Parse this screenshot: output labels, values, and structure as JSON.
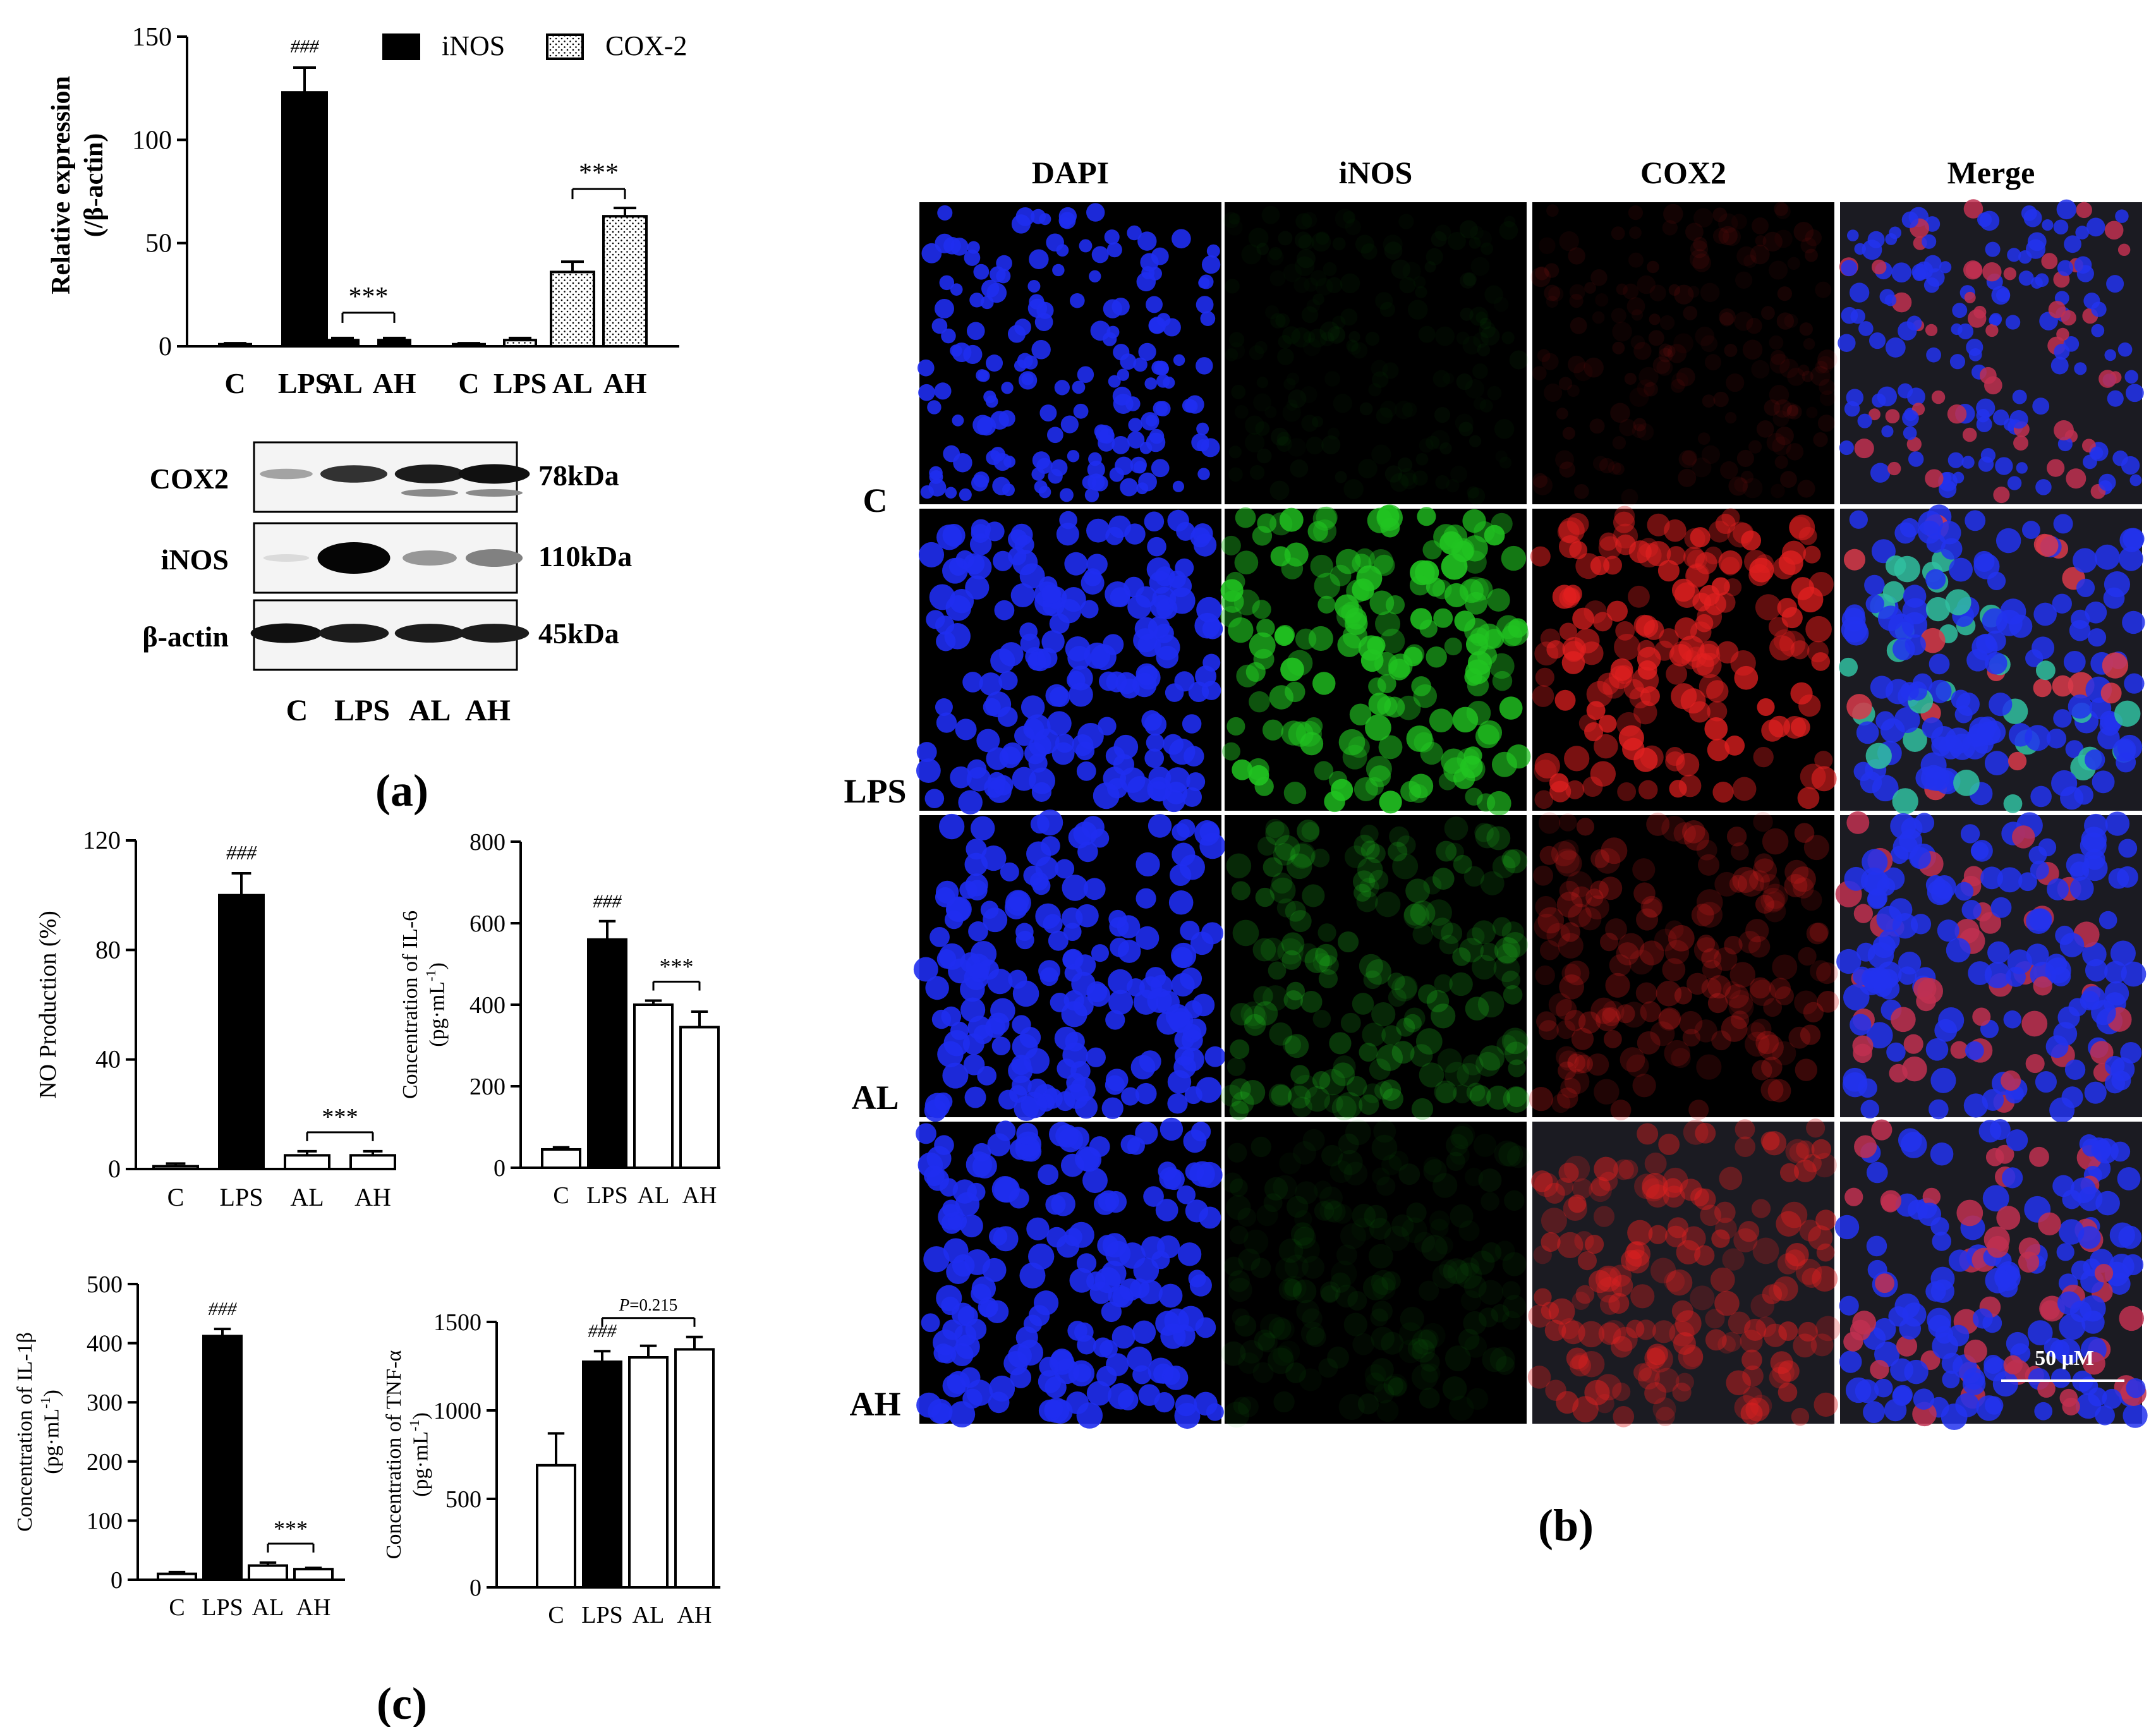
{
  "panel_labels": {
    "a": "(a)",
    "b": "(b)",
    "c": "(c)"
  },
  "western_blot": {
    "rows": [
      {
        "protein": "COX2",
        "kda": "78kDa",
        "band_intensity": [
          0.3,
          0.8,
          0.9,
          0.95
        ]
      },
      {
        "protein": "iNOS",
        "kda": "110kDa",
        "band_intensity": [
          0.05,
          1.0,
          0.35,
          0.45
        ]
      },
      {
        "protein": "β-actin",
        "kda": "45kDa",
        "band_intensity": [
          0.95,
          0.9,
          0.9,
          0.9
        ]
      }
    ],
    "lanes": [
      "C",
      "LPS",
      "AL",
      "AH"
    ]
  },
  "microscopy": {
    "columns": [
      "DAPI",
      "iNOS",
      "COX2",
      "Merge"
    ],
    "rows": [
      "C",
      "LPS",
      "AL",
      "AH"
    ],
    "scale_bar": "50 μM",
    "channel_colors": {
      "DAPI": "#1a2cff",
      "iNOS": "#21c421",
      "COX2": "#e32020",
      "Merge": "#5060ff"
    },
    "signal_level": {
      "C": [
        0.8,
        0.05,
        0.1,
        0.8
      ],
      "LPS": [
        0.8,
        0.9,
        0.8,
        0.9
      ],
      "AL": [
        0.9,
        0.3,
        0.3,
        0.9
      ],
      "AH": [
        0.8,
        0.08,
        0.5,
        0.8
      ]
    }
  },
  "chart_data": [
    {
      "id": "a-bar",
      "type": "bar",
      "ylabel": [
        "Relative expression",
        "(/β-actin)"
      ],
      "ylim": [
        0,
        150
      ],
      "yticks": [
        "0",
        "50",
        "100",
        "150"
      ],
      "group_labels": [
        "C",
        "LPS",
        "AL",
        "AH",
        "C",
        "LPS",
        "AL",
        "AH"
      ],
      "legend": [
        {
          "name": "iNOS",
          "style": "solid"
        },
        {
          "name": "COX-2",
          "style": "dotted"
        }
      ],
      "series": [
        {
          "name": "iNOS",
          "style": "solid",
          "categories": [
            "C",
            "LPS",
            "AL",
            "AH"
          ],
          "values": [
            1,
            123,
            3,
            3
          ],
          "errors": [
            0.5,
            12,
            1,
            1
          ]
        },
        {
          "name": "COX-2",
          "style": "dotted",
          "categories": [
            "C",
            "LPS",
            "AL",
            "AH"
          ],
          "values": [
            1,
            3,
            36,
            63
          ],
          "errors": [
            0.5,
            1,
            5,
            4
          ]
        }
      ],
      "annotations": [
        {
          "text": "###",
          "target": "iNOS LPS"
        },
        {
          "text": "***",
          "span": "iNOS AL–AH"
        },
        {
          "text": "***",
          "span": "COX-2 AL–AH"
        }
      ]
    },
    {
      "id": "c-no",
      "type": "bar",
      "ylabel": [
        "NO Production (%)"
      ],
      "ylim": [
        0,
        120
      ],
      "yticks": [
        "0",
        "40",
        "80",
        "120"
      ],
      "categories": [
        "C",
        "LPS",
        "AL",
        "AH"
      ],
      "values": [
        1,
        100,
        5,
        5
      ],
      "errors": [
        1,
        8,
        1.5,
        1.5
      ],
      "fills": [
        "open",
        "solid",
        "open",
        "open"
      ],
      "annotations": [
        {
          "text": "###",
          "target": "LPS"
        },
        {
          "text": "***",
          "span": "AL–AH"
        }
      ]
    },
    {
      "id": "c-il6",
      "type": "bar",
      "ylabel": [
        "Concentration of IL-6",
        "(pg·mL",
        "-1",
        ")"
      ],
      "ylim": [
        0,
        800
      ],
      "yticks": [
        "0",
        "200",
        "400",
        "600",
        "800"
      ],
      "categories": [
        "C",
        "LPS",
        "AL",
        "AH"
      ],
      "values": [
        45,
        560,
        400,
        345
      ],
      "errors": [
        5,
        45,
        10,
        38
      ],
      "fills": [
        "open",
        "solid",
        "open",
        "open"
      ],
      "annotations": [
        {
          "text": "###",
          "target": "LPS"
        },
        {
          "text": "***",
          "span": "AL–AH"
        }
      ]
    },
    {
      "id": "c-il1b",
      "type": "bar",
      "ylabel": [
        "Concentration of IL-1β",
        "(pg·mL",
        "-1",
        ")"
      ],
      "ylim": [
        0,
        500
      ],
      "yticks": [
        "0",
        "100",
        "200",
        "300",
        "400",
        "500"
      ],
      "categories": [
        "C",
        "LPS",
        "AL",
        "AH"
      ],
      "values": [
        10,
        412,
        24,
        18
      ],
      "errors": [
        3,
        12,
        5,
        2
      ],
      "fills": [
        "open",
        "solid",
        "open",
        "open"
      ],
      "annotations": [
        {
          "text": "###",
          "target": "LPS"
        },
        {
          "text": "***",
          "span": "AL–AH"
        }
      ]
    },
    {
      "id": "c-tnf",
      "type": "bar",
      "ylabel": [
        "Concentration of TNF-α",
        "(pg·mL",
        "-1",
        ")"
      ],
      "ylim": [
        0,
        1500
      ],
      "yticks": [
        "0",
        "500",
        "1000",
        "1500"
      ],
      "categories": [
        "C",
        "LPS",
        "AL",
        "AH"
      ],
      "values": [
        690,
        1275,
        1300,
        1345
      ],
      "errors": [
        180,
        60,
        65,
        70
      ],
      "fills": [
        "open",
        "solid",
        "open",
        "open"
      ],
      "annotations": [
        {
          "text": "###",
          "target": "LPS"
        },
        {
          "text": "P=0.215",
          "span": "LPS–AH"
        }
      ]
    }
  ]
}
